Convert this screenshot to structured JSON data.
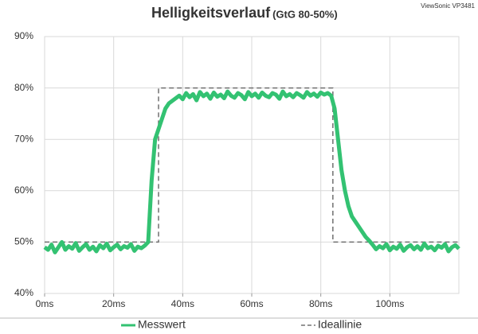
{
  "chart_data": {
    "type": "line",
    "title": "Helligkeitsverlauf",
    "subtitle": "(GtG 80-50%)",
    "brand": "ViewSonic VP3481",
    "xlim": [
      0,
      120
    ],
    "ylim": [
      40,
      90
    ],
    "xticks": [
      {
        "value": 0,
        "label": "0ms"
      },
      {
        "value": 20,
        "label": "20ms"
      },
      {
        "value": 40,
        "label": "40ms"
      },
      {
        "value": 60,
        "label": "60ms"
      },
      {
        "value": 80,
        "label": "80ms"
      },
      {
        "value": 100,
        "label": "100ms"
      }
    ],
    "yticks": [
      {
        "value": 40,
        "label": "40%"
      },
      {
        "value": 50,
        "label": "50%"
      },
      {
        "value": 60,
        "label": "60%"
      },
      {
        "value": 70,
        "label": "70%"
      },
      {
        "value": 80,
        "label": "80%"
      },
      {
        "value": 90,
        "label": "90%"
      }
    ],
    "grid": true,
    "legend": "bottom",
    "series": [
      {
        "name": "Messwert",
        "color": "#33c272",
        "style": "solid",
        "x": [
          0,
          1,
          2,
          3,
          4,
          5,
          6,
          7,
          8,
          9,
          10,
          11,
          12,
          13,
          14,
          15,
          16,
          17,
          18,
          19,
          20,
          21,
          22,
          23,
          24,
          25,
          26,
          27,
          28,
          29,
          30,
          31,
          32,
          33,
          34,
          35,
          36,
          37,
          38,
          39,
          40,
          41,
          42,
          43,
          44,
          45,
          46,
          47,
          48,
          49,
          50,
          51,
          52,
          53,
          54,
          55,
          56,
          57,
          58,
          59,
          60,
          61,
          62,
          63,
          64,
          65,
          66,
          67,
          68,
          69,
          70,
          71,
          72,
          73,
          74,
          75,
          76,
          77,
          78,
          79,
          80,
          81,
          82,
          83,
          84,
          85,
          86,
          87,
          88,
          89,
          90,
          91,
          92,
          93,
          94,
          95,
          96,
          97,
          98,
          99,
          100,
          101,
          102,
          103,
          104,
          105,
          106,
          107,
          108,
          109,
          110,
          111,
          112,
          113,
          114,
          115,
          116,
          117,
          118,
          119,
          120
        ],
        "values": [
          49,
          48.5,
          49.5,
          48,
          49,
          50,
          48.5,
          49.2,
          48.7,
          49.8,
          48.3,
          49,
          49.6,
          48.5,
          49.1,
          48.2,
          49.4,
          48.8,
          49.7,
          48.4,
          49,
          49.5,
          48.6,
          49.2,
          48.9,
          49.6,
          48.3,
          49.1,
          48.8,
          49.3,
          50,
          62,
          70,
          72,
          74,
          76,
          77,
          77.5,
          78,
          78.5,
          77.8,
          79,
          78.2,
          78.8,
          77.6,
          79.2,
          78.4,
          78.9,
          77.9,
          79.1,
          78.3,
          78.7,
          78,
          79.3,
          78.5,
          78.1,
          79,
          78.6,
          77.8,
          79.2,
          78.4,
          78.9,
          78.1,
          79.1,
          78.5,
          78.2,
          79,
          78.7,
          77.9,
          79.3,
          78.4,
          78.8,
          78.2,
          79,
          78.6,
          78.1,
          79.2,
          78.5,
          78.9,
          78.3,
          79.1,
          78.7,
          79,
          78.5,
          76,
          70,
          64,
          60,
          57,
          55,
          54,
          53,
          52,
          51,
          50.3,
          49.5,
          48.6,
          49.2,
          48.8,
          49.6,
          48.4,
          49.1,
          48.7,
          49.5,
          48.3,
          49,
          49.4,
          48.6,
          49.2,
          48.5,
          49.7,
          48.8,
          49.1,
          48.4,
          49.3,
          48.9,
          49.6,
          48.2,
          49,
          49.4,
          48.7
        ]
      },
      {
        "name": "Ideallinie",
        "color": "#707070",
        "style": "dashed",
        "x": [
          0,
          33,
          33,
          83.5,
          83.5,
          120
        ],
        "values": [
          50,
          50,
          80,
          80,
          50,
          50
        ]
      }
    ]
  }
}
